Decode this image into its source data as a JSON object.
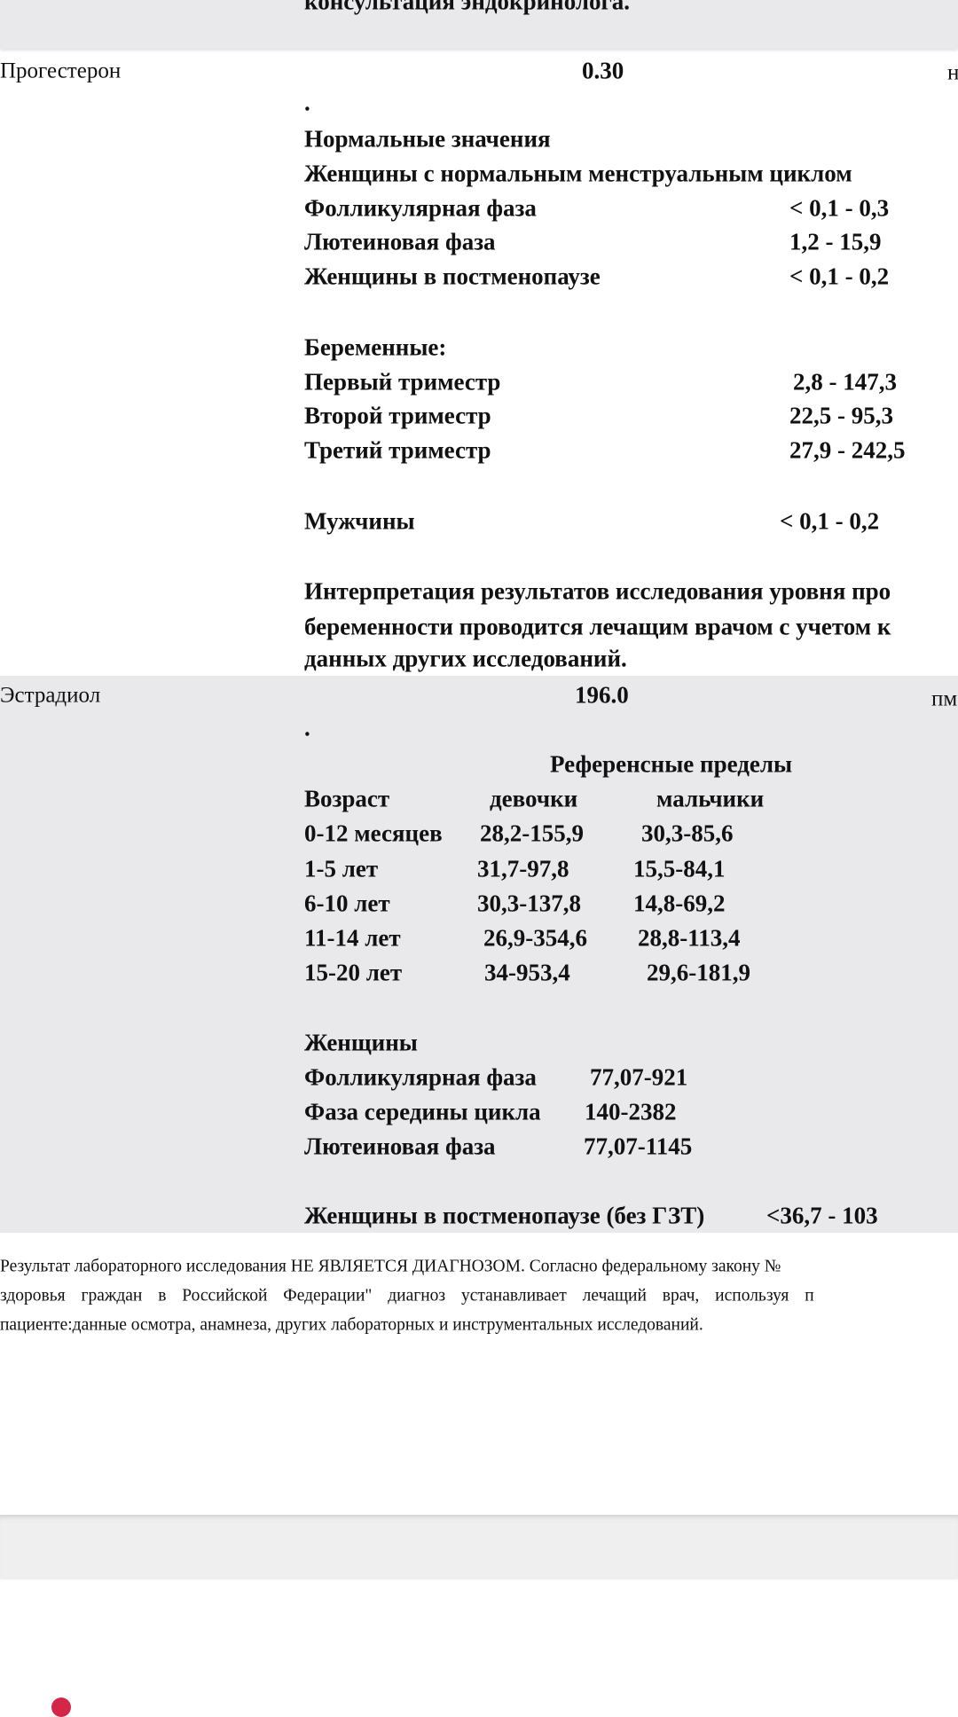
{
  "top_note": "консультация эндокринолога.",
  "progesterone": {
    "name": "Прогестерон",
    "value": "0.30",
    "unit": "н",
    "dot": ".",
    "heading": "Нормальные значения",
    "subheading": "Женщины с нормальным менструальным циклом",
    "rows1": [
      {
        "label": "Фолликулярная фаза",
        "range": "< 0,1 - 0,3"
      },
      {
        "label": "Лютеиновая фаза",
        "range": "1,2 - 15,9"
      },
      {
        "label": "Женщины в постменопаузе",
        "range": "< 0,1 - 0,2"
      }
    ],
    "pregnant_heading": "Беременные:",
    "rows2": [
      {
        "label": "Первый триместр",
        "range": "2,8 - 147,3"
      },
      {
        "label": "Второй триместр",
        "range": "22,5 - 95,3"
      },
      {
        "label": "Третий триместр",
        "range": "27,9 - 242,5"
      }
    ],
    "men": {
      "label": "Мужчины",
      "range": "< 0,1 - 0,2"
    },
    "interpretation": [
      "Интерпретация результатов исследования уровня про",
      "беременности проводится лечащим врачом с учетом к",
      "данных других исследований."
    ]
  },
  "estradiol": {
    "name": "Эстрадиол",
    "value": "196.0",
    "unit": "пм",
    "dot": ".",
    "ref_heading": "Референсные пределы",
    "col_age": "Возраст",
    "col_girls": "девочки",
    "col_boys": "мальчики",
    "age_rows": [
      {
        "age": "0-12 месяцев",
        "girls": "28,2-155,9",
        "boys": "30,3-85,6"
      },
      {
        "age": "1-5 лет",
        "girls": "31,7-97,8",
        "boys": "15,5-84,1"
      },
      {
        "age": "6-10 лет",
        "girls": "30,3-137,8",
        "boys": "14,8-69,2"
      },
      {
        "age": "11-14 лет",
        "girls": "26,9-354,6",
        "boys": "28,8-113,4"
      },
      {
        "age": "15-20 лет",
        "girls": "34-953,4",
        "boys": "29,6-181,9"
      }
    ],
    "women_heading": "Женщины",
    "women_rows": [
      {
        "label": "Фолликулярная фаза",
        "range": "77,07-921"
      },
      {
        "label": "Фаза середины цикла",
        "range": "140-2382"
      },
      {
        "label": "Лютеиновая фаза",
        "range": "77,07-1145"
      }
    ],
    "postmeno": {
      "label": "Женщины в постменопаузе (без ГЗТ)",
      "range": "<36,7 - 103"
    }
  },
  "disclaimer": [
    "Результат лабораторного исследования НЕ ЯВЛЯЕТСЯ ДИАГНОЗОМ. Согласно федеральному закону №",
    "здоровья граждан в Российской Федерации\" диагноз устанавливает лечащий врач, используя п",
    "пациенте:данные осмотра, анамнеза, других лабораторных и инструментальных исследований."
  ],
  "colors": {
    "section_bg": "#e9e9eb",
    "accent_dot": "#d5264a"
  }
}
